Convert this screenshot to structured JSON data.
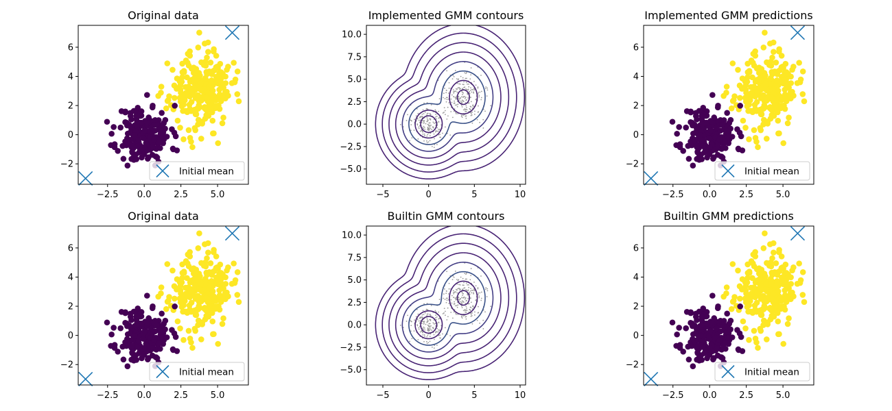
{
  "colors": {
    "class0": "#440154",
    "class1": "#fde725",
    "mean_marker": "#1f77b4",
    "sample_dot": "#9a9a9a",
    "contour_palette": [
      "#482374",
      "#433e85",
      "#3a5188",
      "#31668e",
      "#2d718e"
    ]
  },
  "chart_data": [
    {
      "id": "p1",
      "type": "scatter",
      "title": "Original data",
      "xlim": [
        -4.5,
        7.1
      ],
      "ylim": [
        -3.4,
        7.5
      ],
      "xticks": [
        -2.5,
        0.0,
        2.5,
        5.0
      ],
      "xtick_labels": [
        "−2.5",
        "0.0",
        "2.5",
        "5.0"
      ],
      "yticks": [
        -2,
        0,
        2,
        4,
        6
      ],
      "ytick_labels": [
        "−2",
        "0",
        "2",
        "4",
        "6"
      ],
      "clusters": [
        {
          "label": 0,
          "center": [
            0.0,
            0.0
          ],
          "spread": [
            0.9,
            1.0
          ],
          "count": 200,
          "seed": 11
        },
        {
          "label": 1,
          "center": [
            3.8,
            3.0
          ],
          "spread": [
            1.05,
            1.3
          ],
          "count": 260,
          "seed": 23
        }
      ],
      "initial_means": [
        [
          -4.0,
          -3.0
        ],
        [
          6.0,
          7.0
        ]
      ],
      "legend": {
        "label": "Initial mean",
        "loc": "lower right"
      }
    },
    {
      "id": "p2",
      "type": "contour",
      "title": "Implemented GMM contours",
      "xlim": [
        -6.8,
        10.6
      ],
      "ylim": [
        -6.7,
        11.0
      ],
      "xticks": [
        -5,
        0,
        5,
        10
      ],
      "xtick_labels": [
        "−5",
        "0",
        "5",
        "10"
      ],
      "yticks": [
        -5.0,
        -2.5,
        0.0,
        2.5,
        5.0,
        7.5,
        10.0
      ],
      "ytick_labels": [
        "−5.0",
        "−2.5",
        "0.0",
        "2.5",
        "5.0",
        "7.5",
        "10.0"
      ],
      "components": [
        {
          "mean": [
            0.0,
            0.0
          ],
          "std": [
            0.95,
            1.0
          ],
          "weight": 0.45
        },
        {
          "mean": [
            3.8,
            3.0
          ],
          "std": [
            1.1,
            1.35
          ],
          "weight": 0.55
        }
      ],
      "sample_seed": 5
    },
    {
      "id": "p3",
      "type": "scatter",
      "title": "Implemented GMM predictions",
      "xlim": [
        -4.5,
        7.1
      ],
      "ylim": [
        -3.4,
        7.5
      ],
      "xticks": [
        -2.5,
        0.0,
        2.5,
        5.0
      ],
      "xtick_labels": [
        "−2.5",
        "0.0",
        "2.5",
        "5.0"
      ],
      "yticks": [
        -2,
        0,
        2,
        4,
        6
      ],
      "ytick_labels": [
        "−2",
        "0",
        "2",
        "4",
        "6"
      ],
      "clusters": [
        {
          "label": 0,
          "center": [
            0.0,
            0.0
          ],
          "spread": [
            0.9,
            1.0
          ],
          "count": 200,
          "seed": 11
        },
        {
          "label": 1,
          "center": [
            3.8,
            3.0
          ],
          "spread": [
            1.05,
            1.3
          ],
          "count": 260,
          "seed": 23
        }
      ],
      "initial_means": [
        [
          -4.0,
          -3.0
        ],
        [
          6.0,
          7.0
        ]
      ],
      "legend": {
        "label": "Initial mean",
        "loc": "lower right"
      }
    },
    {
      "id": "p4",
      "type": "scatter",
      "title": "Original data",
      "xlim": [
        -4.5,
        7.1
      ],
      "ylim": [
        -3.4,
        7.5
      ],
      "xticks": [
        -2.5,
        0.0,
        2.5,
        5.0
      ],
      "xtick_labels": [
        "−2.5",
        "0.0",
        "2.5",
        "5.0"
      ],
      "yticks": [
        -2,
        0,
        2,
        4,
        6
      ],
      "ytick_labels": [
        "−2",
        "0",
        "2",
        "4",
        "6"
      ],
      "clusters": [
        {
          "label": 0,
          "center": [
            0.0,
            0.0
          ],
          "spread": [
            0.9,
            1.0
          ],
          "count": 200,
          "seed": 11
        },
        {
          "label": 1,
          "center": [
            3.8,
            3.0
          ],
          "spread": [
            1.05,
            1.3
          ],
          "count": 260,
          "seed": 23
        }
      ],
      "initial_means": [
        [
          -4.0,
          -3.0
        ],
        [
          6.0,
          7.0
        ]
      ],
      "legend": {
        "label": "Initial mean",
        "loc": "lower right"
      }
    },
    {
      "id": "p5",
      "type": "contour",
      "title": "Builtin GMM contours",
      "xlim": [
        -6.8,
        10.6
      ],
      "ylim": [
        -6.7,
        11.0
      ],
      "xticks": [
        -5,
        0,
        5,
        10
      ],
      "xtick_labels": [
        "−5",
        "0",
        "5",
        "10"
      ],
      "yticks": [
        -5.0,
        -2.5,
        0.0,
        2.5,
        5.0,
        7.5,
        10.0
      ],
      "ytick_labels": [
        "−5.0",
        "−2.5",
        "0.0",
        "2.5",
        "5.0",
        "7.5",
        "10.0"
      ],
      "components": [
        {
          "mean": [
            0.0,
            0.0
          ],
          "std": [
            0.95,
            1.0
          ],
          "weight": 0.45
        },
        {
          "mean": [
            3.8,
            3.0
          ],
          "std": [
            1.1,
            1.35
          ],
          "weight": 0.55
        }
      ],
      "sample_seed": 5
    },
    {
      "id": "p6",
      "type": "scatter",
      "title": "Builtin GMM predictions",
      "xlim": [
        -4.5,
        7.1
      ],
      "ylim": [
        -3.4,
        7.5
      ],
      "xticks": [
        -2.5,
        0.0,
        2.5,
        5.0
      ],
      "xtick_labels": [
        "−2.5",
        "0.0",
        "2.5",
        "5.0"
      ],
      "yticks": [
        -2,
        0,
        2,
        4,
        6
      ],
      "ytick_labels": [
        "−2",
        "0",
        "2",
        "4",
        "6"
      ],
      "clusters": [
        {
          "label": 0,
          "center": [
            0.0,
            0.0
          ],
          "spread": [
            0.9,
            1.0
          ],
          "count": 200,
          "seed": 11
        },
        {
          "label": 1,
          "center": [
            3.8,
            3.0
          ],
          "spread": [
            1.05,
            1.3
          ],
          "count": 260,
          "seed": 23
        }
      ],
      "initial_means": [
        [
          -4.0,
          -3.0
        ],
        [
          6.0,
          7.0
        ]
      ],
      "legend": {
        "label": "Initial mean",
        "loc": "lower right"
      }
    }
  ]
}
